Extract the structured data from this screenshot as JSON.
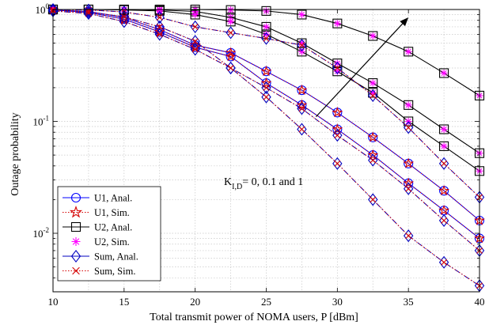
{
  "chart_data": {
    "type": "line",
    "xlabel": "Total transmit power of NOMA users, P [dBm]",
    "ylabel": "Outage probability",
    "xlim": [
      10,
      40
    ],
    "ylim": [
      0.003,
      1
    ],
    "yscale": "log",
    "grid": true,
    "legend_position": "bottom-left",
    "x_ticks": [
      10,
      15,
      20,
      25,
      30,
      35,
      40
    ],
    "y_ticks": [
      {
        "value": 1,
        "base": "10",
        "exp": "0"
      },
      {
        "value": 0.1,
        "base": "10",
        "exp": "-1"
      },
      {
        "value": 0.01,
        "base": "10",
        "exp": "-2"
      }
    ],
    "annotation": {
      "prefix": "K",
      "subscript": "I,D",
      "text": "= 0, 0.1 and 1",
      "arrow_from": [
        28.5,
        0.11
      ],
      "arrow_to": [
        35,
        0.85
      ]
    },
    "legend": [
      {
        "label": "U1, Anal.",
        "color": "#0000ff",
        "marker": "circle",
        "dash": "solid"
      },
      {
        "label": "U1, Sim.",
        "color": "#d40000",
        "marker": "star",
        "dash": "dotted"
      },
      {
        "label": "U2, Anal.",
        "color": "#000000",
        "marker": "square",
        "dash": "solid"
      },
      {
        "label": "U2, Sim.",
        "color": "#ff00ff",
        "marker": "asterisk",
        "dash": "none"
      },
      {
        "label": "Sum, Anal.",
        "color": "#0000c0",
        "marker": "diamond",
        "dash": "solid"
      },
      {
        "label": "Sum, Sim.",
        "color": "#d40000",
        "marker": "x",
        "dash": "dotted"
      }
    ],
    "x": [
      10,
      12.5,
      15,
      17.5,
      20,
      22.5,
      25,
      27.5,
      30,
      32.5,
      35,
      37.5,
      40
    ],
    "series": [
      {
        "group": "U1",
        "curve": "K=0",
        "color": "#0000ff",
        "marker": "circle",
        "sim_marker": "star",
        "sim_color": "#d40000",
        "dash": "solid",
        "values": [
          0.99,
          0.96,
          0.85,
          0.66,
          0.48,
          0.41,
          0.28,
          0.19,
          0.12,
          0.072,
          0.042,
          0.024,
          0.013
        ]
      },
      {
        "group": "U1",
        "curve": "K=0.1",
        "color": "#0000ff",
        "marker": "circle",
        "sim_marker": "star",
        "sim_color": "#d40000",
        "dash": "solid",
        "values": [
          0.99,
          0.94,
          0.82,
          0.63,
          0.46,
          0.38,
          0.22,
          0.14,
          0.085,
          0.05,
          0.028,
          0.016,
          0.009
        ]
      },
      {
        "group": "U2",
        "curve": "K=0",
        "color": "#000000",
        "marker": "square",
        "sim_marker": "asterisk",
        "sim_color": "#ff00ff",
        "dash": "solid",
        "values": [
          1,
          1,
          1,
          1,
          1,
          0.99,
          0.97,
          0.9,
          0.75,
          0.58,
          0.42,
          0.27,
          0.17
        ]
      },
      {
        "group": "U2",
        "curve": "K=0.1",
        "color": "#000000",
        "marker": "square",
        "sim_marker": "asterisk",
        "sim_color": "#ff00ff",
        "dash": "solid",
        "values": [
          1,
          1,
          1,
          0.99,
          0.96,
          0.85,
          0.7,
          0.5,
          0.33,
          0.22,
          0.14,
          0.085,
          0.052
        ]
      },
      {
        "group": "U2",
        "curve": "K=1",
        "color": "#000000",
        "marker": "square",
        "sim_marker": "asterisk",
        "sim_color": "#ff00ff",
        "dash": "solid",
        "values": [
          1,
          1,
          0.99,
          0.97,
          0.9,
          0.78,
          0.6,
          0.42,
          0.28,
          0.18,
          0.1,
          0.06,
          0.036
        ]
      },
      {
        "group": "Sum",
        "curve": "K=0",
        "color": "#0000c0",
        "marker": "diamond",
        "sim_marker": "x",
        "sim_color": "#d40000",
        "dash": "dashdot",
        "values": [
          0.97,
          0.92,
          0.78,
          0.6,
          0.44,
          0.3,
          0.2,
          0.13,
          0.075,
          0.045,
          0.025,
          0.013,
          0.007
        ]
      },
      {
        "group": "Sum",
        "curve": "K=0.1",
        "color": "#0000c0",
        "marker": "diamond",
        "sim_marker": "x",
        "sim_color": "#d40000",
        "dash": "dashdot",
        "values": [
          1,
          0.99,
          0.95,
          0.85,
          0.7,
          0.62,
          0.55,
          0.48,
          0.3,
          0.17,
          0.088,
          0.042,
          0.021
        ]
      },
      {
        "group": "Sum",
        "curve": "K=1",
        "color": "#0000c0",
        "marker": "diamond",
        "sim_marker": "x",
        "sim_color": "#d40000",
        "dash": "dashdot",
        "values": [
          0.99,
          0.95,
          0.86,
          0.7,
          0.52,
          0.3,
          0.165,
          0.085,
          0.042,
          0.02,
          0.0095,
          0.0055,
          0.0034
        ]
      }
    ]
  }
}
